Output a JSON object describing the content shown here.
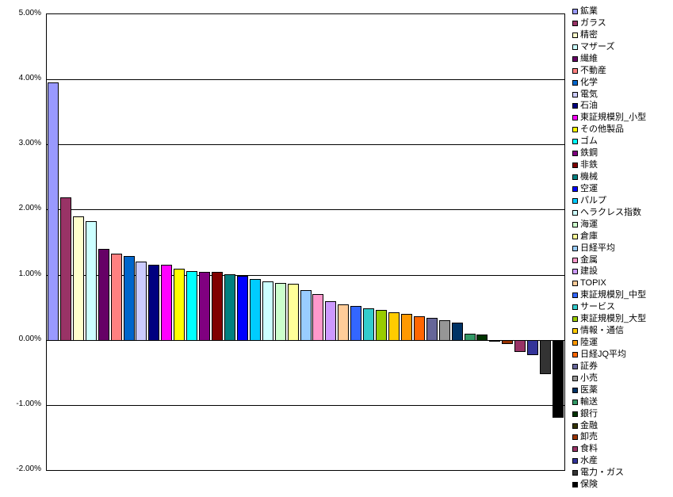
{
  "chart_data": {
    "type": "bar",
    "title": "",
    "xlabel": "",
    "ylabel": "",
    "ylim": [
      -2.0,
      5.0
    ],
    "ytick_step": 1.0,
    "ytick_labels": [
      "5.00%",
      "4.00%",
      "3.00%",
      "2.00%",
      "1.00%",
      "0.00%",
      "-1.00%",
      "-2.00%"
    ],
    "grid": true,
    "plot_background": "#FFFFFF",
    "axis_color": "#000000",
    "legend_position": "right",
    "value_unit": "%",
    "series": [
      {
        "name": "鉱業",
        "value": 3.96,
        "color": "#9999FF"
      },
      {
        "name": "ガラス",
        "value": 2.2,
        "color": "#993366"
      },
      {
        "name": "精密",
        "value": 1.91,
        "color": "#FFFFCC"
      },
      {
        "name": "マザーズ",
        "value": 1.83,
        "color": "#CCFFFF"
      },
      {
        "name": "繊維",
        "value": 1.41,
        "color": "#660066"
      },
      {
        "name": "不動産",
        "value": 1.34,
        "color": "#FF8080"
      },
      {
        "name": "化学",
        "value": 1.3,
        "color": "#0066CC"
      },
      {
        "name": "電気",
        "value": 1.21,
        "color": "#CCCCFF"
      },
      {
        "name": "石油",
        "value": 1.17,
        "color": "#000080"
      },
      {
        "name": "東証規模別_小型",
        "value": 1.16,
        "color": "#FF00FF"
      },
      {
        "name": "その他製品",
        "value": 1.11,
        "color": "#FFFF00"
      },
      {
        "name": "ゴム",
        "value": 1.07,
        "color": "#00FFFF"
      },
      {
        "name": "鉄鋼",
        "value": 1.06,
        "color": "#800080"
      },
      {
        "name": "非鉄",
        "value": 1.05,
        "color": "#800000"
      },
      {
        "name": "機械",
        "value": 1.02,
        "color": "#008080"
      },
      {
        "name": "空運",
        "value": 1.0,
        "color": "#0000FF"
      },
      {
        "name": "パルプ",
        "value": 0.95,
        "color": "#00CCFF"
      },
      {
        "name": "ヘラクレス指数",
        "value": 0.91,
        "color": "#CCFFFF"
      },
      {
        "name": "海運",
        "value": 0.88,
        "color": "#CCFFCC"
      },
      {
        "name": "倉庫",
        "value": 0.87,
        "color": "#FFFF99"
      },
      {
        "name": "日経平均",
        "value": 0.77,
        "color": "#99CCFF"
      },
      {
        "name": "金属",
        "value": 0.72,
        "color": "#FF99CC"
      },
      {
        "name": "建設",
        "value": 0.61,
        "color": "#CC99FF"
      },
      {
        "name": "TOPIX",
        "value": 0.56,
        "color": "#FFCC99"
      },
      {
        "name": "東証規模別_中型",
        "value": 0.53,
        "color": "#3366FF"
      },
      {
        "name": "サービス",
        "value": 0.49,
        "color": "#33CCCC"
      },
      {
        "name": "東証規模別_大型",
        "value": 0.47,
        "color": "#99CC00"
      },
      {
        "name": "情報・通信",
        "value": 0.43,
        "color": "#FFCC00"
      },
      {
        "name": "陸運",
        "value": 0.41,
        "color": "#FF9900"
      },
      {
        "name": "日経JQ平均",
        "value": 0.37,
        "color": "#FF6600"
      },
      {
        "name": "証券",
        "value": 0.35,
        "color": "#666699"
      },
      {
        "name": "小売",
        "value": 0.31,
        "color": "#969696"
      },
      {
        "name": "医薬",
        "value": 0.28,
        "color": "#003366"
      },
      {
        "name": "輸送",
        "value": 0.11,
        "color": "#339966"
      },
      {
        "name": "銀行",
        "value": 0.09,
        "color": "#003300"
      },
      {
        "name": "金融",
        "value": -0.02,
        "color": "#333300"
      },
      {
        "name": "卸売",
        "value": -0.07,
        "color": "#993300"
      },
      {
        "name": "食料",
        "value": -0.19,
        "color": "#993366"
      },
      {
        "name": "水産",
        "value": -0.23,
        "color": "#333399"
      },
      {
        "name": "電力・ガス",
        "value": -0.53,
        "color": "#333333"
      },
      {
        "name": "保険",
        "value": -1.2,
        "color": "#000000"
      }
    ]
  }
}
